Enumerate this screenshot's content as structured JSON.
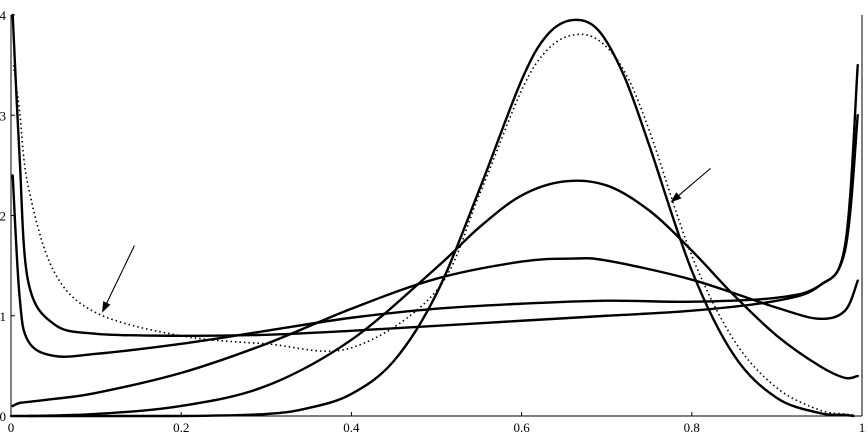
{
  "chart_data": {
    "type": "line",
    "title": "",
    "xlabel": "",
    "ylabel": "",
    "xlim": [
      0,
      1
    ],
    "ylim": [
      0,
      4
    ],
    "xticks": [
      0,
      0.2,
      0.4,
      0.6,
      0.8,
      1
    ],
    "xtick_labels": [
      "0",
      "0.2",
      "0.4",
      "0.6",
      "0.8",
      "1"
    ],
    "yticks": [
      0,
      1,
      2,
      3,
      4
    ],
    "ytick_labels": [
      "0",
      "1",
      "2",
      "3",
      "4"
    ],
    "grid": false,
    "legend": "none",
    "series": [
      {
        "style": "solid",
        "x": [
          0.002,
          0.01,
          0.02,
          0.05,
          0.1,
          0.2,
          0.3,
          0.4,
          0.5,
          0.6,
          0.7,
          0.8,
          0.9,
          0.95,
          0.98,
          0.995
        ],
        "y": [
          4.0,
          2.6,
          1.35,
          0.92,
          0.82,
          0.8,
          0.81,
          0.85,
          0.9,
          0.95,
          1.0,
          1.05,
          1.15,
          1.3,
          1.7,
          3.5
        ]
      },
      {
        "style": "solid",
        "x": [
          0.002,
          0.01,
          0.02,
          0.05,
          0.1,
          0.2,
          0.3,
          0.4,
          0.5,
          0.6,
          0.7,
          0.8,
          0.9,
          0.95,
          0.98,
          0.995
        ],
        "y": [
          2.4,
          1.2,
          0.75,
          0.6,
          0.62,
          0.72,
          0.85,
          0.98,
          1.07,
          1.12,
          1.15,
          1.14,
          1.18,
          1.3,
          1.65,
          3.0
        ]
      },
      {
        "style": "solid",
        "x": [
          0.002,
          0.01,
          0.02,
          0.05,
          0.1,
          0.2,
          0.3,
          0.4,
          0.5,
          0.6,
          0.66,
          0.7,
          0.8,
          0.9,
          0.95,
          0.98,
          0.995
        ],
        "y": [
          0.1,
          0.13,
          0.14,
          0.17,
          0.23,
          0.43,
          0.72,
          1.07,
          1.37,
          1.54,
          1.57,
          1.55,
          1.36,
          1.08,
          0.97,
          1.05,
          1.35
        ]
      },
      {
        "style": "solid",
        "x": [
          0.02,
          0.1,
          0.2,
          0.3,
          0.4,
          0.5,
          0.55,
          0.6,
          0.65,
          0.7,
          0.75,
          0.8,
          0.85,
          0.9,
          0.95,
          0.98,
          0.995
        ],
        "y": [
          0.0,
          0.02,
          0.1,
          0.3,
          0.76,
          1.48,
          1.88,
          2.2,
          2.34,
          2.3,
          2.05,
          1.65,
          1.2,
          0.8,
          0.5,
          0.38,
          0.4
        ]
      },
      {
        "style": "solid",
        "x": [
          0.0,
          0.2,
          0.3,
          0.35,
          0.4,
          0.45,
          0.5,
          0.55,
          0.6,
          0.63,
          0.66,
          0.69,
          0.72,
          0.75,
          0.8,
          0.85,
          0.9,
          0.95,
          0.98,
          0.99
        ],
        "y": [
          0.0,
          0.0,
          0.02,
          0.08,
          0.22,
          0.55,
          1.22,
          2.25,
          3.35,
          3.8,
          3.95,
          3.85,
          3.4,
          2.7,
          1.45,
          0.6,
          0.18,
          0.03,
          0.01,
          0.0
        ]
      },
      {
        "style": "dotted",
        "x": [
          0.003,
          0.01,
          0.02,
          0.05,
          0.1,
          0.2,
          0.3,
          0.4,
          0.5,
          0.55,
          0.6,
          0.63,
          0.66,
          0.69,
          0.72,
          0.75,
          0.8,
          0.85,
          0.9,
          0.95,
          0.98,
          0.99
        ],
        "y": [
          3.5,
          3.05,
          2.3,
          1.45,
          1.03,
          0.8,
          0.72,
          0.68,
          1.25,
          2.2,
          3.25,
          3.65,
          3.8,
          3.75,
          3.45,
          2.85,
          1.6,
          0.75,
          0.28,
          0.06,
          0.02,
          0.01
        ]
      }
    ],
    "annotations": [
      {
        "type": "arrow",
        "from": [
          0.145,
          1.7
        ],
        "to": [
          0.107,
          1.03
        ]
      },
      {
        "type": "arrow",
        "from": [
          0.822,
          2.47
        ],
        "to": [
          0.775,
          2.13
        ]
      }
    ]
  }
}
